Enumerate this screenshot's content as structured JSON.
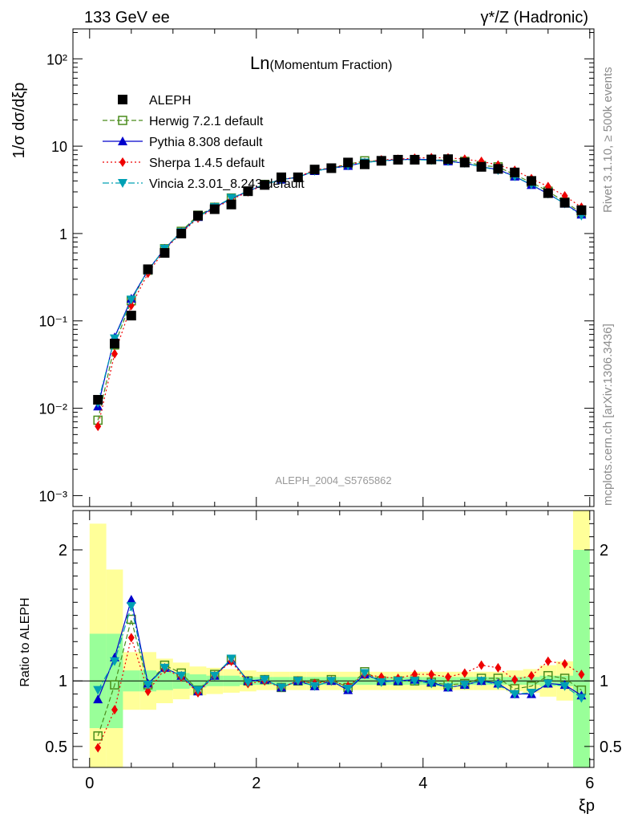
{
  "header": {
    "left": "133 GeV ee",
    "right": "γ*/Z (Hadronic)"
  },
  "side_labels": {
    "upper": "Rivet 3.1.10, ≥ 500k events",
    "lower": "mcplots.cern.ch [arXiv:1306.3436]"
  },
  "chart_data": {
    "type": "scatter",
    "title": "Ln(Momentum Fraction)",
    "title_main": "Ln",
    "title_sub": "(Momentum Fraction)",
    "analysis_label": "ALEPH_2004_S5765862",
    "ylabel_top": "1/σ dσ/dξp",
    "ylabel_bottom": "Ratio to ALEPH",
    "xlabel": "ξp",
    "xlim": [
      -0.2,
      6.05
    ],
    "ylim_top": [
      0.00075,
      220
    ],
    "ylim_bottom": [
      0.34,
      2.3
    ],
    "x_ticks": [
      "0",
      "2",
      "4",
      "6"
    ],
    "y_ticks_top": [
      "10⁻³",
      "10⁻²",
      "10⁻¹",
      "1",
      "10",
      "10²"
    ],
    "y_ticks_bottom": [
      "0.5",
      "1",
      "2"
    ],
    "x": [
      0.1,
      0.3,
      0.5,
      0.7,
      0.9,
      1.1,
      1.3,
      1.5,
      1.7,
      1.9,
      2.1,
      2.3,
      2.5,
      2.7,
      2.9,
      3.1,
      3.3,
      3.5,
      3.7,
      3.9,
      4.1,
      4.3,
      4.5,
      4.7,
      4.9,
      5.1,
      5.3,
      5.5,
      5.7,
      5.9
    ],
    "band_edges": [
      0.0,
      0.2,
      0.4,
      0.6,
      0.8,
      1.0,
      1.2,
      1.4,
      1.6,
      1.8,
      2.0,
      2.2,
      2.4,
      2.6,
      2.8,
      3.0,
      3.2,
      3.4,
      3.6,
      3.8,
      4.0,
      4.2,
      4.4,
      4.6,
      4.8,
      5.0,
      5.2,
      5.4,
      5.6,
      5.8,
      6.0
    ],
    "band_stat": [
      0.36,
      0.36,
      0.08,
      0.08,
      0.07,
      0.06,
      0.05,
      0.04,
      0.04,
      0.03,
      0.03,
      0.03,
      0.03,
      0.03,
      0.03,
      0.03,
      0.03,
      0.03,
      0.03,
      0.03,
      0.03,
      0.03,
      0.03,
      0.03,
      0.03,
      0.03,
      0.03,
      0.04,
      0.04,
      1.0
    ],
    "band_total": [
      1.2,
      0.85,
      0.22,
      0.22,
      0.17,
      0.14,
      0.11,
      0.1,
      0.09,
      0.08,
      0.07,
      0.07,
      0.07,
      0.07,
      0.07,
      0.07,
      0.07,
      0.07,
      0.07,
      0.07,
      0.07,
      0.07,
      0.07,
      0.07,
      0.07,
      0.08,
      0.09,
      0.12,
      0.15,
      1.3
    ],
    "series": [
      {
        "name": "ALEPH",
        "color": "#000000",
        "marker": "square",
        "line": "none",
        "values": [
          0.0125,
          0.055,
          0.115,
          0.39,
          0.6,
          1.0,
          1.6,
          1.9,
          2.15,
          3.05,
          3.6,
          4.4,
          4.4,
          5.4,
          5.6,
          6.5,
          6.2,
          6.8,
          7.0,
          7.0,
          7.05,
          7.1,
          6.5,
          5.8,
          5.5,
          5.0,
          4.0,
          2.9,
          2.25,
          1.85
        ],
        "ratio": [
          1,
          1,
          1,
          1,
          1,
          1,
          1,
          1,
          1,
          1,
          1,
          1,
          1,
          1,
          1,
          1,
          1,
          1,
          1,
          1,
          1,
          1,
          1,
          1,
          1,
          1,
          1,
          1,
          1,
          1
        ]
      },
      {
        "name": "Herwig 7.2.1 default",
        "color": "#4a8c1c",
        "marker": "open-square",
        "line": "dashed",
        "values": [
          0.0073,
          0.053,
          0.17,
          0.38,
          0.67,
          1.06,
          1.62,
          2.0,
          2.55,
          3.05,
          3.65,
          4.2,
          4.4,
          5.3,
          5.6,
          6.2,
          6.8,
          6.8,
          7.0,
          7.0,
          7.0,
          6.9,
          6.7,
          6.0,
          5.8,
          4.7,
          3.85,
          3.05,
          2.3,
          1.73
        ],
        "ratio": [
          0.58,
          0.97,
          1.47,
          0.97,
          1.12,
          1.06,
          0.93,
          1.05,
          1.16,
          1.0,
          1.01,
          0.95,
          1.0,
          0.98,
          1.01,
          0.95,
          1.07,
          1.0,
          1.0,
          1.0,
          0.99,
          0.97,
          0.98,
          1.02,
          1.02,
          0.94,
          0.96,
          1.04,
          1.02,
          0.93
        ]
      },
      {
        "name": "Pythia 8.308 default",
        "color": "#0000cc",
        "marker": "triangle-up",
        "line": "solid",
        "values": [
          0.0105,
          0.065,
          0.18,
          0.38,
          0.67,
          1.04,
          1.55,
          2.0,
          2.5,
          3.05,
          3.65,
          4.15,
          4.4,
          5.2,
          5.6,
          5.95,
          6.5,
          6.8,
          7.0,
          7.1,
          7.0,
          6.7,
          6.4,
          5.8,
          5.4,
          4.5,
          3.6,
          2.85,
          2.2,
          1.65
        ],
        "ratio": [
          0.86,
          1.18,
          1.62,
          0.98,
          1.1,
          1.04,
          0.92,
          1.04,
          1.16,
          1.0,
          1.01,
          0.95,
          1.0,
          0.96,
          1.0,
          0.93,
          1.05,
          1.0,
          1.0,
          1.01,
          0.99,
          0.95,
          0.97,
          1.0,
          0.98,
          0.9,
          0.9,
          0.98,
          0.97,
          0.89
        ]
      },
      {
        "name": "Sherpa 1.4.5 default",
        "color": "#ee0000",
        "marker": "diamond",
        "line": "dotted",
        "values": [
          0.0062,
          0.042,
          0.15,
          0.35,
          0.65,
          1.02,
          1.5,
          1.95,
          2.45,
          3.0,
          3.6,
          4.2,
          4.4,
          5.4,
          5.6,
          6.3,
          6.5,
          7.0,
          7.1,
          7.3,
          7.4,
          7.35,
          7.1,
          6.7,
          6.1,
          5.3,
          4.25,
          3.45,
          2.7,
          2.0
        ],
        "ratio": [
          0.49,
          0.78,
          1.33,
          0.92,
          1.09,
          1.03,
          0.91,
          1.04,
          1.15,
          0.98,
          1.0,
          0.95,
          1.0,
          0.98,
          1.0,
          0.96,
          1.05,
          1.03,
          1.02,
          1.05,
          1.05,
          1.03,
          1.06,
          1.12,
          1.1,
          1.01,
          1.04,
          1.15,
          1.13,
          1.05
        ]
      },
      {
        "name": "Vincia 2.3.01_8.243 default",
        "color": "#00a0b4",
        "marker": "triangle-down",
        "line": "dashdot",
        "values": [
          0.0115,
          0.063,
          0.175,
          0.38,
          0.67,
          1.04,
          1.55,
          2.0,
          2.55,
          3.05,
          3.65,
          4.15,
          4.4,
          5.2,
          5.6,
          6.0,
          6.5,
          6.8,
          7.0,
          7.0,
          6.9,
          6.7,
          6.4,
          5.8,
          5.3,
          4.5,
          3.65,
          2.85,
          2.2,
          1.6
        ],
        "ratio": [
          0.93,
          1.15,
          1.57,
          0.97,
          1.1,
          1.04,
          0.93,
          1.04,
          1.17,
          0.99,
          1.01,
          0.95,
          1.0,
          0.96,
          1.0,
          0.94,
          1.06,
          0.99,
          1.0,
          1.0,
          0.98,
          0.95,
          0.97,
          1.0,
          0.97,
          0.9,
          0.91,
          0.98,
          0.96,
          0.87
        ]
      }
    ]
  }
}
